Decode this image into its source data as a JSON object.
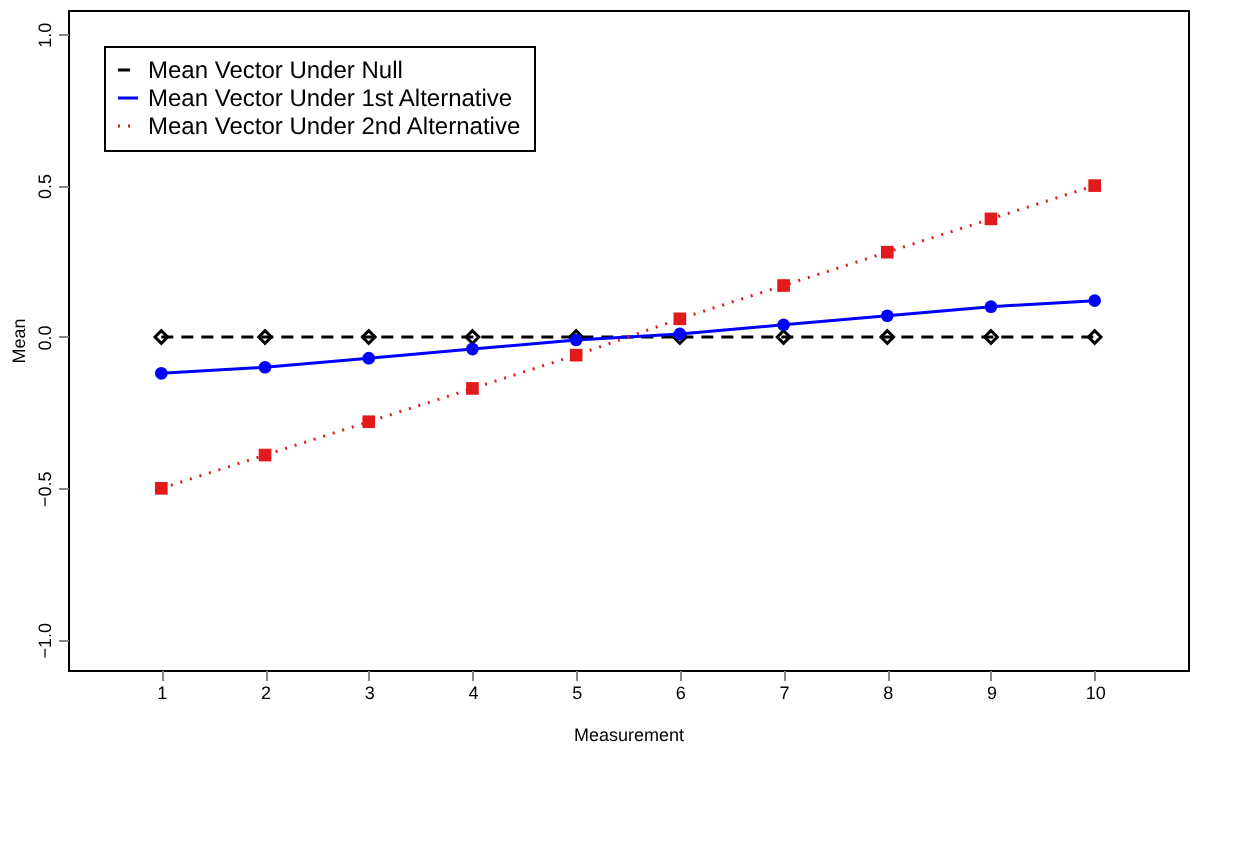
{
  "chart_data": {
    "type": "line",
    "xlabel": "Measurement",
    "ylabel": "Mean",
    "x": [
      1,
      2,
      3,
      4,
      5,
      6,
      7,
      8,
      9,
      10
    ],
    "xlim": [
      0.1,
      10.9
    ],
    "xticks": [
      1,
      2,
      3,
      4,
      5,
      6,
      7,
      8,
      9,
      10
    ],
    "ylim": [
      -1.1,
      1.08
    ],
    "yticks": [
      {
        "value": -1,
        "label": "−1.0"
      },
      {
        "value": -0.5,
        "label": "−0.5"
      },
      {
        "value": 0,
        "label": "0.0"
      },
      {
        "value": 0.5,
        "label": "0.5"
      },
      {
        "value": 1,
        "label": "1.0"
      }
    ],
    "grid": false,
    "legend": "top left",
    "series": [
      {
        "name": "Mean Vector Under Null",
        "color": "#000000",
        "marker": "diamond",
        "line_style": "dashed",
        "values": [
          0,
          0,
          0,
          0,
          0,
          0,
          0,
          0,
          0,
          0
        ]
      },
      {
        "name": "Mean Vector Under 1st Alternative",
        "color": "#0000ff",
        "marker": "circle",
        "line_style": "solid",
        "values": [
          -0.12,
          -0.1,
          -0.07,
          -0.04,
          -0.01,
          0.01,
          0.04,
          0.07,
          0.1,
          0.12
        ]
      },
      {
        "name": "Mean Vector Under 2nd Alternative",
        "color": "#e31a1c",
        "marker": "square",
        "line_style": "dotted",
        "values": [
          -0.5,
          -0.39,
          -0.28,
          -0.17,
          -0.06,
          0.06,
          0.17,
          0.28,
          0.39,
          0.5
        ]
      }
    ]
  }
}
